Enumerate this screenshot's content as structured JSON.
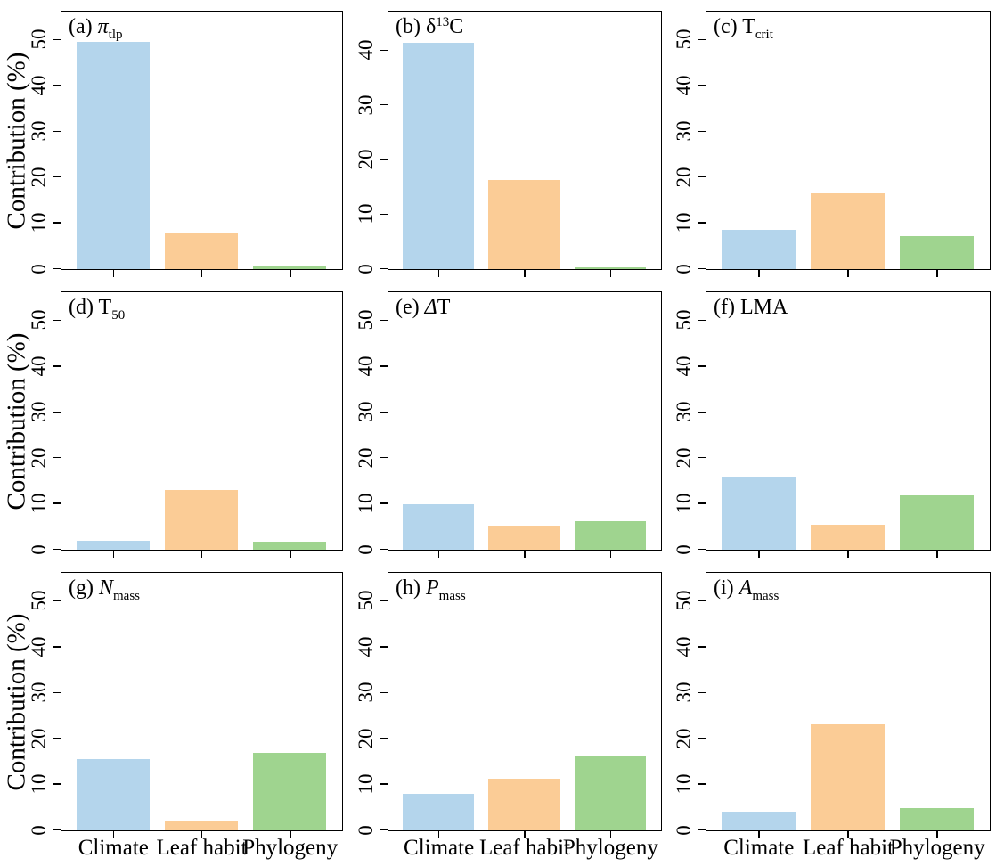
{
  "figure": {
    "ylabel": "Contribution (%)",
    "categories": [
      "Climate",
      "Leaf habit",
      "Phylogeny"
    ],
    "colors": {
      "climate": "#B4D5EC",
      "leaf_habit": "#FBCC96",
      "phylogeny": "#9FD48F"
    },
    "axis_color": "#000000"
  },
  "chart_data": [
    {
      "type": "bar",
      "panel": "a",
      "trait": "pi_tlp",
      "title_parts": [
        {
          "t": "(a) "
        },
        {
          "t": "π",
          "style": "italic"
        },
        {
          "t": "tlp",
          "style": "sub"
        }
      ],
      "categories": [
        "Climate",
        "Leaf habit",
        "Phylogeny"
      ],
      "values": [
        49.5,
        8.0,
        0.6
      ],
      "xlabel": "",
      "ylabel": "Contribution (%)",
      "yticks": [
        0,
        10,
        20,
        30,
        40,
        50
      ],
      "ylim": [
        0,
        56
      ],
      "grid": false,
      "legend": false
    },
    {
      "type": "bar",
      "panel": "b",
      "trait": "delta13C",
      "title_parts": [
        {
          "t": "(b) δ"
        },
        {
          "t": "13",
          "style": "sup"
        },
        {
          "t": "C"
        }
      ],
      "categories": [
        "Climate",
        "Leaf habit",
        "Phylogeny"
      ],
      "values": [
        41.5,
        16.4,
        0.3
      ],
      "xlabel": "",
      "ylabel": "Contribution (%)",
      "yticks": [
        0,
        10,
        20,
        30,
        40
      ],
      "ylim": [
        0,
        47
      ],
      "grid": false,
      "legend": false
    },
    {
      "type": "bar",
      "panel": "c",
      "trait": "T_crit",
      "title_parts": [
        {
          "t": "(c) T"
        },
        {
          "t": "crit",
          "style": "sub"
        }
      ],
      "categories": [
        "Climate",
        "Leaf habit",
        "Phylogeny"
      ],
      "values": [
        8.6,
        16.5,
        7.3
      ],
      "xlabel": "",
      "ylabel": "Contribution (%)",
      "yticks": [
        0,
        10,
        20,
        30,
        40,
        50
      ],
      "ylim": [
        0,
        56
      ],
      "grid": false,
      "legend": false
    },
    {
      "type": "bar",
      "panel": "d",
      "trait": "T_50",
      "title_parts": [
        {
          "t": "(d) T"
        },
        {
          "t": "50",
          "style": "sub"
        }
      ],
      "categories": [
        "Climate",
        "Leaf habit",
        "Phylogeny"
      ],
      "values": [
        2.0,
        13.0,
        1.8
      ],
      "xlabel": "",
      "ylabel": "Contribution (%)",
      "yticks": [
        0,
        10,
        20,
        30,
        40,
        50
      ],
      "ylim": [
        0,
        56
      ],
      "grid": false,
      "legend": false
    },
    {
      "type": "bar",
      "panel": "e",
      "trait": "delta_T",
      "title_parts": [
        {
          "t": "(e) "
        },
        {
          "t": "Δ",
          "style": "italic"
        },
        {
          "t": "T"
        }
      ],
      "categories": [
        "Climate",
        "Leaf habit",
        "Phylogeny"
      ],
      "values": [
        10.0,
        5.2,
        6.3
      ],
      "xlabel": "",
      "ylabel": "Contribution (%)",
      "yticks": [
        0,
        10,
        20,
        30,
        40,
        50
      ],
      "ylim": [
        0,
        56
      ],
      "grid": false,
      "legend": false
    },
    {
      "type": "bar",
      "panel": "f",
      "trait": "LMA",
      "title_parts": [
        {
          "t": "(f) LMA"
        }
      ],
      "categories": [
        "Climate",
        "Leaf habit",
        "Phylogeny"
      ],
      "values": [
        16.0,
        5.5,
        11.9
      ],
      "xlabel": "",
      "ylabel": "Contribution (%)",
      "yticks": [
        0,
        10,
        20,
        30,
        40,
        50
      ],
      "ylim": [
        0,
        56
      ],
      "grid": false,
      "legend": false
    },
    {
      "type": "bar",
      "panel": "g",
      "trait": "N_mass",
      "title_parts": [
        {
          "t": "(g) "
        },
        {
          "t": "N",
          "style": "italic"
        },
        {
          "t": "mass",
          "style": "sub"
        }
      ],
      "categories": [
        "Climate",
        "Leaf habit",
        "Phylogeny"
      ],
      "values": [
        15.5,
        2.0,
        16.9
      ],
      "xlabel": "",
      "ylabel": "Contribution (%)",
      "yticks": [
        0,
        10,
        20,
        30,
        40,
        50
      ],
      "ylim": [
        0,
        56
      ],
      "grid": false,
      "legend": false
    },
    {
      "type": "bar",
      "panel": "h",
      "trait": "P_mass",
      "title_parts": [
        {
          "t": "(h) "
        },
        {
          "t": "P",
          "style": "italic"
        },
        {
          "t": "mass",
          "style": "sub"
        }
      ],
      "categories": [
        "Climate",
        "Leaf habit",
        "Phylogeny"
      ],
      "values": [
        8.0,
        11.2,
        16.3
      ],
      "xlabel": "",
      "ylabel": "Contribution (%)",
      "yticks": [
        0,
        10,
        20,
        30,
        40,
        50
      ],
      "ylim": [
        0,
        56
      ],
      "grid": false,
      "legend": false
    },
    {
      "type": "bar",
      "panel": "i",
      "trait": "A_mass",
      "title_parts": [
        {
          "t": "(i) "
        },
        {
          "t": "A",
          "style": "italic"
        },
        {
          "t": "mass",
          "style": "sub"
        }
      ],
      "categories": [
        "Climate",
        "Leaf habit",
        "Phylogeny"
      ],
      "values": [
        4.0,
        23.2,
        4.8
      ],
      "xlabel": "",
      "ylabel": "Contribution (%)",
      "yticks": [
        0,
        10,
        20,
        30,
        40,
        50
      ],
      "ylim": [
        0,
        56
      ],
      "grid": false,
      "legend": false
    }
  ]
}
